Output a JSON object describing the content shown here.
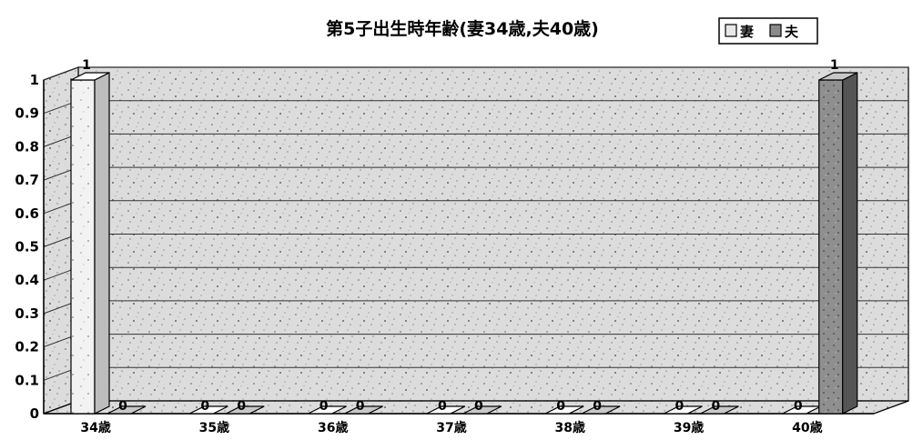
{
  "chart_data": {
    "type": "bar",
    "title": "第5子出生時年齢(妻34歳,夫40歳)",
    "categories": [
      "34歳",
      "35歳",
      "36歳",
      "37歳",
      "38歳",
      "39歳",
      "40歳"
    ],
    "series": [
      {
        "name": "妻",
        "values": [
          1,
          0,
          0,
          0,
          0,
          0,
          0
        ],
        "color": "#e8e8e8"
      },
      {
        "name": "夫",
        "values": [
          0,
          0,
          0,
          0,
          0,
          0,
          1
        ],
        "color": "#8a8a8a"
      }
    ],
    "ylim": [
      0,
      1
    ],
    "yticks": [
      "0",
      "0.1",
      "0.2",
      "0.3",
      "0.4",
      "0.5",
      "0.6",
      "0.7",
      "0.8",
      "0.9",
      "1"
    ],
    "legend": {
      "placement": "top-right"
    },
    "grid": true,
    "style": "3d-column"
  }
}
